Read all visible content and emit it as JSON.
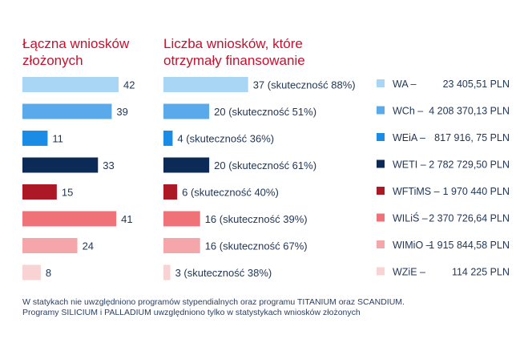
{
  "chart_data": {
    "type": "bar",
    "orientation": "horizontal",
    "categories": [
      "WA",
      "WCh",
      "WEiA",
      "WETI",
      "WFTiMS",
      "WILiŚ",
      "WIMiO",
      "WZiE"
    ],
    "colors": [
      "#a9d6f5",
      "#5aaaeb",
      "#1a8ce6",
      "#0c2a56",
      "#ad1826",
      "#ee7278",
      "#f5a6aa",
      "#f9d2d4"
    ],
    "panels": [
      {
        "title": "Łączna wniosków\nzłożonych",
        "values": [
          42,
          39,
          11,
          33,
          15,
          41,
          24,
          8
        ],
        "labels": [
          "42",
          "39",
          "11",
          "33",
          "15",
          "41",
          "24",
          "8"
        ]
      },
      {
        "title": "Liczba wniosków, które\notrzymały finansowanie",
        "values": [
          37,
          20,
          4,
          20,
          6,
          16,
          16,
          3
        ],
        "labels": [
          "37 (skuteczność 88%)",
          "20 (skuteczność 51%)",
          "4 (skuteczność 36%)",
          "20 (skuteczność 61%)",
          "6 (skuteczność 40%)",
          "16 (skuteczność 39%)",
          "16 (skuteczność 67%)",
          "3 (skuteczność 38%)"
        ]
      }
    ],
    "legend": [
      {
        "label": "WA –",
        "amount": "23 405,51 PLN"
      },
      {
        "label": "WCh –",
        "amount": "4 208 370,13 PLN"
      },
      {
        "label": "WEiA –",
        "amount": "817 916, 75 PLN"
      },
      {
        "label": "WETI –",
        "amount": "2 782 729,50 PLN"
      },
      {
        "label": "WFTiMS –",
        "amount": "1 970 440 PLN"
      },
      {
        "label": "WILiŚ –",
        "amount": "2 370 726,64 PLN"
      },
      {
        "label": "WIMiO –",
        "amount": "1 915 844,58 PLN"
      },
      {
        "label": "WZiE –",
        "amount": "114 225 PLN"
      }
    ],
    "legend_placement": "right",
    "grid": false,
    "xlim": [
      0,
      42
    ]
  },
  "notes": [
    "W statykach nie uwzględniono programów stypendialnych oraz programu TITANIUM oraz SCANDIUM.",
    "Programy SILICIUM i PALLADIUM uwzględniono tylko w statystykach wniosków złożonych"
  ]
}
